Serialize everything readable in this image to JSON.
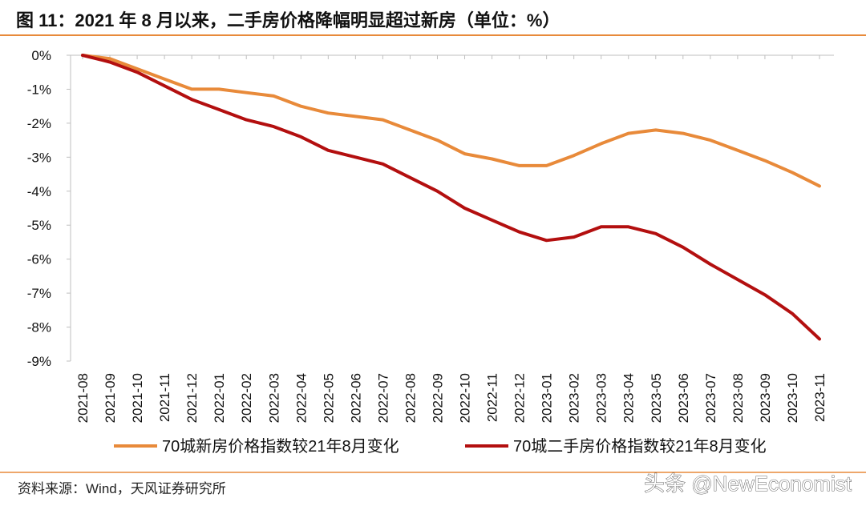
{
  "title": "图 11：2021 年 8 月以来，二手房价格降幅明显超过新房（单位：%）",
  "source": "资料来源：Wind，天风证券研究所",
  "watermark": "头条 @NewEconomist",
  "colors": {
    "accent_rule": "#E88A3A",
    "series_new": "#E88A3A",
    "series_used": "#B30F0F",
    "axis": "#BFBFBF"
  },
  "chart_data": {
    "type": "line",
    "title": "图 11：2021 年 8 月以来，二手房价格降幅明显超过新房（单位：%）",
    "xlabel": "",
    "ylabel": "",
    "ylim": [
      -9,
      0
    ],
    "y_ticks": [
      0,
      -1,
      -2,
      -3,
      -4,
      -5,
      -6,
      -7,
      -8,
      -9
    ],
    "y_tick_labels": [
      "0%",
      "-1%",
      "-2%",
      "-3%",
      "-4%",
      "-5%",
      "-6%",
      "-7%",
      "-8%",
      "-9%"
    ],
    "grid": false,
    "legend_position": "bottom",
    "categories": [
      "2021-08",
      "2021-09",
      "2021-10",
      "2021-11",
      "2021-12",
      "2022-01",
      "2022-02",
      "2022-03",
      "2022-04",
      "2022-05",
      "2022-06",
      "2022-07",
      "2022-08",
      "2022-09",
      "2022-10",
      "2022-11",
      "2022-12",
      "2023-01",
      "2023-02",
      "2023-03",
      "2023-04",
      "2023-05",
      "2023-06",
      "2023-07",
      "2023-08",
      "2023-09",
      "2023-10",
      "2023-11"
    ],
    "series": [
      {
        "name": "70城新房价格指数较21年8月变化",
        "color": "#E88A3A",
        "values": [
          0.0,
          -0.1,
          -0.4,
          -0.7,
          -1.0,
          -1.0,
          -1.1,
          -1.2,
          -1.5,
          -1.7,
          -1.8,
          -1.9,
          -2.2,
          -2.5,
          -2.9,
          -3.05,
          -3.25,
          -3.25,
          -2.95,
          -2.6,
          -2.3,
          -2.2,
          -2.3,
          -2.5,
          -2.8,
          -3.1,
          -3.45,
          -3.85
        ]
      },
      {
        "name": "70城二手房价格指数较21年8月变化",
        "color": "#B30F0F",
        "values": [
          0.0,
          -0.2,
          -0.5,
          -0.9,
          -1.3,
          -1.6,
          -1.9,
          -2.1,
          -2.4,
          -2.8,
          -3.0,
          -3.2,
          -3.6,
          -4.0,
          -4.5,
          -4.85,
          -5.2,
          -5.45,
          -5.35,
          -5.05,
          -5.05,
          -5.25,
          -5.65,
          -6.15,
          -6.6,
          -7.05,
          -7.6,
          -8.35
        ]
      }
    ]
  }
}
